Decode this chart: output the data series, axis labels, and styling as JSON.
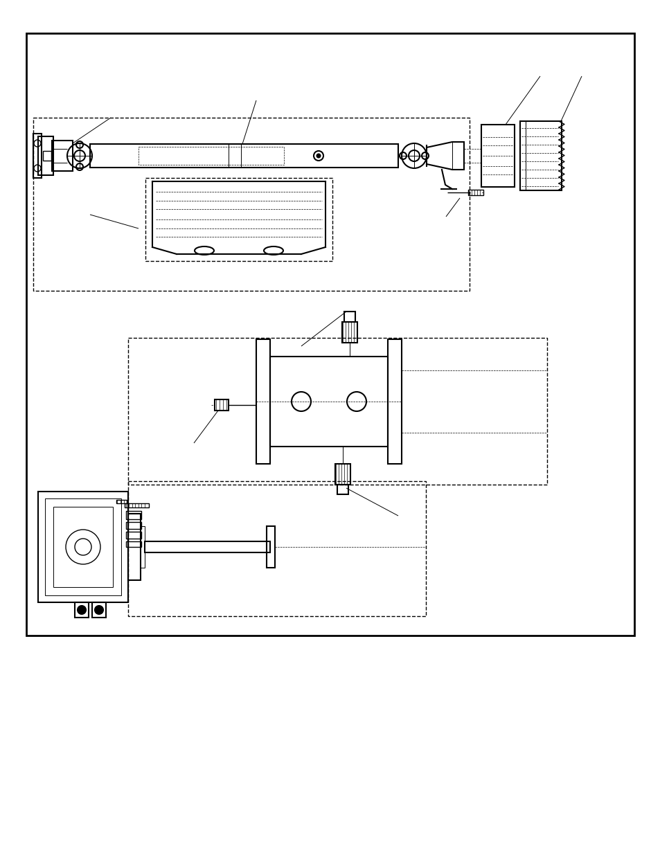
{
  "bg_color": "#ffffff",
  "line_color": "#000000",
  "lw_heavy": 2.0,
  "lw_med": 1.5,
  "lw_light": 1.0,
  "lw_thin": 0.7,
  "lw_hair": 0.5
}
